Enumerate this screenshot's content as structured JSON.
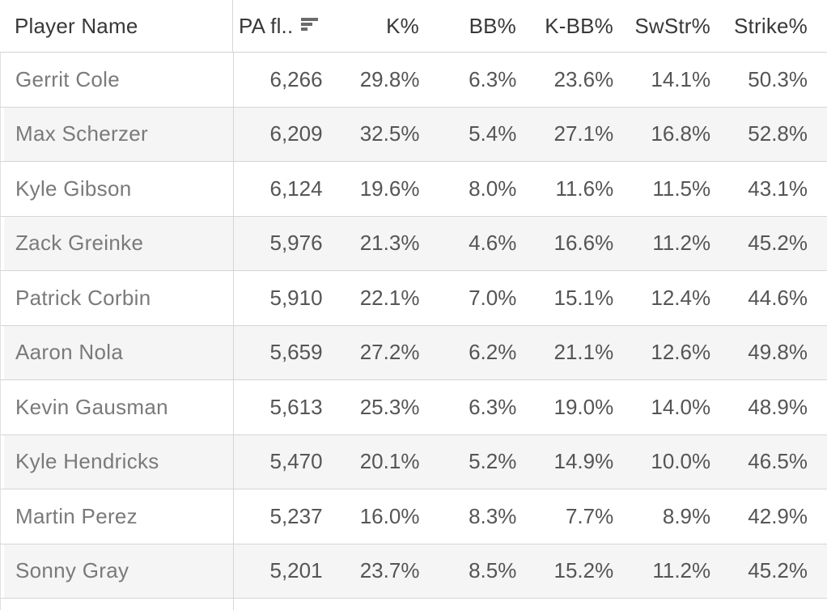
{
  "chart_data": {
    "type": "table",
    "title": "",
    "columns": [
      {
        "label": "Player Name",
        "align": "left",
        "role": "row-header"
      },
      {
        "label": "PA fl..",
        "align": "left",
        "sort": "descending",
        "truncated": true
      },
      {
        "label": "K%",
        "align": "right"
      },
      {
        "label": "BB%",
        "align": "right"
      },
      {
        "label": "K-BB%",
        "align": "right"
      },
      {
        "label": "SwStr%",
        "align": "right"
      },
      {
        "label": "Strike%",
        "align": "right"
      }
    ],
    "rows": [
      {
        "player": "Gerrit Cole",
        "pa": "6,266",
        "k": "29.8%",
        "bb": "6.3%",
        "kbb": "23.6%",
        "swstr": "14.1%",
        "strike": "50.3%"
      },
      {
        "player": "Max Scherzer",
        "pa": "6,209",
        "k": "32.5%",
        "bb": "5.4%",
        "kbb": "27.1%",
        "swstr": "16.8%",
        "strike": "52.8%"
      },
      {
        "player": "Kyle Gibson",
        "pa": "6,124",
        "k": "19.6%",
        "bb": "8.0%",
        "kbb": "11.6%",
        "swstr": "11.5%",
        "strike": "43.1%"
      },
      {
        "player": "Zack Greinke",
        "pa": "5,976",
        "k": "21.3%",
        "bb": "4.6%",
        "kbb": "16.6%",
        "swstr": "11.2%",
        "strike": "45.2%"
      },
      {
        "player": "Patrick Corbin",
        "pa": "5,910",
        "k": "22.1%",
        "bb": "7.0%",
        "kbb": "15.1%",
        "swstr": "12.4%",
        "strike": "44.6%"
      },
      {
        "player": "Aaron Nola",
        "pa": "5,659",
        "k": "27.2%",
        "bb": "6.2%",
        "kbb": "21.1%",
        "swstr": "12.6%",
        "strike": "49.8%"
      },
      {
        "player": "Kevin Gausman",
        "pa": "5,613",
        "k": "25.3%",
        "bb": "6.3%",
        "kbb": "19.0%",
        "swstr": "14.0%",
        "strike": "48.9%"
      },
      {
        "player": "Kyle Hendricks",
        "pa": "5,470",
        "k": "20.1%",
        "bb": "5.2%",
        "kbb": "14.9%",
        "swstr": "10.0%",
        "strike": "46.5%"
      },
      {
        "player": "Martin Perez",
        "pa": "5,237",
        "k": "16.0%",
        "bb": "8.3%",
        "kbb": "7.7%",
        "swstr": "8.9%",
        "strike": "42.9%"
      },
      {
        "player": "Sonny Gray",
        "pa": "5,201",
        "k": "23.7%",
        "bb": "8.5%",
        "kbb": "15.2%",
        "swstr": "11.2%",
        "strike": "45.2%"
      }
    ],
    "layout": {
      "row_banding": "alternate",
      "banding_color": "#f5f5f5",
      "gridline_color": "#d6d6d6",
      "header_text_color": "#383838",
      "row_header_text_color": "#7a7a7a",
      "value_text_color": "#555555",
      "sorted_column": "PA fl..",
      "sort_direction": "descending",
      "partial_row_visible_at_bottom": true
    }
  }
}
